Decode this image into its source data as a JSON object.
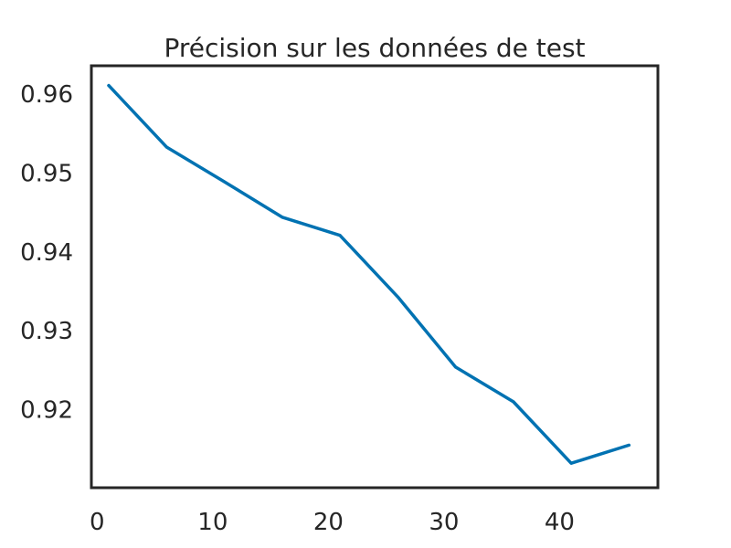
{
  "chart_data": {
    "type": "line",
    "title": "Précision sur les données de test",
    "xlabel": "",
    "ylabel": "",
    "x": [
      1,
      6,
      11,
      16,
      21,
      26,
      31,
      36,
      41,
      46
    ],
    "series": [
      {
        "values": [
          0.9611,
          0.9533,
          0.9489,
          0.9444,
          0.9421,
          0.9343,
          0.9254,
          0.921,
          0.9132,
          0.9155
        ]
      }
    ],
    "xlim": [
      -0.5,
      48.5
    ],
    "ylim": [
      0.9101,
      0.9636
    ],
    "xticks": [
      0,
      10,
      20,
      30,
      40
    ],
    "yticks": [
      0.92,
      0.93,
      0.94,
      0.95,
      0.96
    ],
    "xtick_labels": [
      "0",
      "10",
      "20",
      "30",
      "40"
    ],
    "ytick_labels": [
      "0.92",
      "0.93",
      "0.94",
      "0.95",
      "0.96"
    ],
    "grid": false,
    "legend": "none",
    "line_color": "#0072b2",
    "axis_color": "#262626"
  }
}
